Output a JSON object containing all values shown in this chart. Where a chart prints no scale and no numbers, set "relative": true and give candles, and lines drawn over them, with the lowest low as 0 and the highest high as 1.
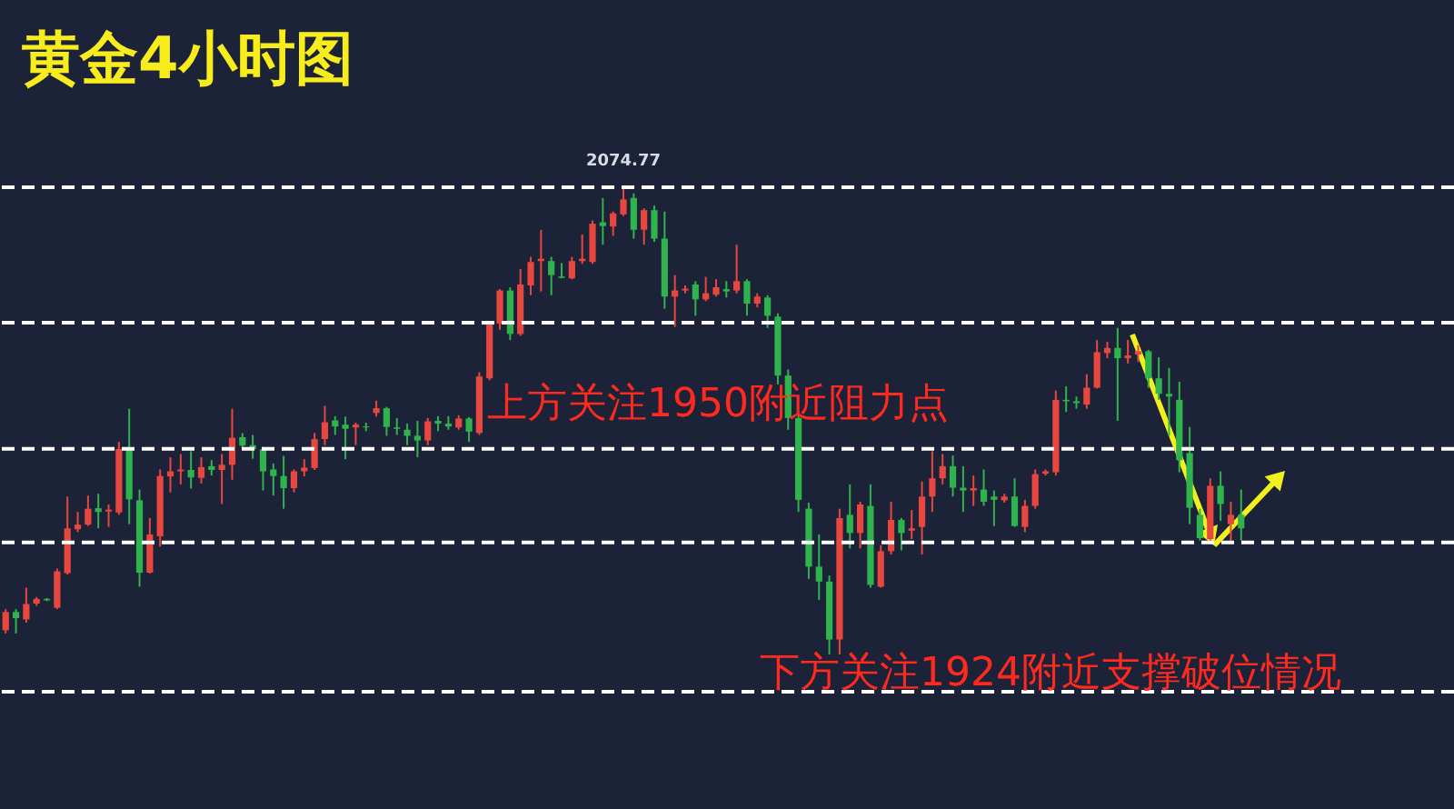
{
  "chart_data": {
    "type": "candlestick",
    "title": "黄金4小时图",
    "relative": true,
    "categories": [
      null,
      null,
      null,
      null,
      null,
      null,
      null,
      null,
      null,
      null,
      null,
      null,
      null,
      null,
      null,
      null,
      null,
      null,
      null,
      null,
      null,
      null,
      null,
      null,
      null,
      null,
      null,
      null,
      null,
      null,
      null,
      null,
      null,
      null,
      null,
      null,
      null,
      null,
      null,
      null,
      null,
      null,
      null,
      null,
      null,
      null,
      null,
      null,
      null,
      null,
      null,
      null,
      null,
      null,
      null,
      null,
      null,
      null,
      null,
      null,
      null,
      null,
      null,
      null,
      null,
      null,
      null,
      null,
      null,
      null,
      null,
      null,
      null,
      null,
      null,
      null,
      null,
      null,
      null,
      null,
      null,
      null,
      null,
      null,
      null,
      null,
      null,
      null,
      null,
      null,
      null,
      null,
      null,
      null,
      null,
      null,
      null,
      null,
      null,
      null,
      null,
      null,
      null,
      null,
      null,
      null,
      null,
      null,
      null,
      null,
      null,
      null,
      null,
      null,
      null,
      null,
      null,
      null,
      null,
      null,
      null
    ],
    "ohlc": [
      [
        0.052,
        0.097,
        0.045,
        0.091
      ],
      [
        0.091,
        0.097,
        0.045,
        0.078
      ],
      [
        0.075,
        0.143,
        0.068,
        0.108
      ],
      [
        0.109,
        0.123,
        0.104,
        0.119
      ],
      [
        0.119,
        0.121,
        0.114,
        0.116
      ],
      [
        0.1,
        0.184,
        0.097,
        0.178
      ],
      [
        0.174,
        0.338,
        0.171,
        0.27
      ],
      [
        0.268,
        0.305,
        0.262,
        0.278
      ],
      [
        0.278,
        0.34,
        0.275,
        0.312
      ],
      [
        0.313,
        0.344,
        0.27,
        0.305
      ],
      [
        0.306,
        0.321,
        0.273,
        0.31
      ],
      [
        0.304,
        0.455,
        0.299,
        0.44
      ],
      [
        0.44,
        0.526,
        0.279,
        0.332
      ],
      [
        0.33,
        0.353,
        0.145,
        0.175
      ],
      [
        0.175,
        0.292,
        0.173,
        0.257
      ],
      [
        0.253,
        0.396,
        0.231,
        0.382
      ],
      [
        0.381,
        0.422,
        0.347,
        0.392
      ],
      [
        0.392,
        0.429,
        0.364,
        0.396
      ],
      [
        0.395,
        0.435,
        0.355,
        0.379
      ],
      [
        0.378,
        0.422,
        0.366,
        0.401
      ],
      [
        0.403,
        0.416,
        0.383,
        0.395
      ],
      [
        0.395,
        0.429,
        0.322,
        0.406
      ],
      [
        0.406,
        0.526,
        0.374,
        0.464
      ],
      [
        0.465,
        0.474,
        0.444,
        0.447
      ],
      [
        0.448,
        0.47,
        0.419,
        0.439
      ],
      [
        0.439,
        0.444,
        0.351,
        0.392
      ],
      [
        0.396,
        0.409,
        0.34,
        0.382
      ],
      [
        0.382,
        0.425,
        0.312,
        0.356
      ],
      [
        0.356,
        0.396,
        0.347,
        0.392
      ],
      [
        0.392,
        0.418,
        0.381,
        0.4
      ],
      [
        0.399,
        0.474,
        0.395,
        0.461
      ],
      [
        0.461,
        0.532,
        0.448,
        0.497
      ],
      [
        0.501,
        0.51,
        0.47,
        0.488
      ],
      [
        0.492,
        0.509,
        0.418,
        0.483
      ],
      [
        0.486,
        0.496,
        0.448,
        0.492
      ],
      [
        0.488,
        0.496,
        0.478,
        0.486
      ],
      [
        0.517,
        0.543,
        0.509,
        0.527
      ],
      [
        0.527,
        0.53,
        0.468,
        0.487
      ],
      [
        0.486,
        0.506,
        0.47,
        0.483
      ],
      [
        0.481,
        0.494,
        0.448,
        0.468
      ],
      [
        0.468,
        0.5,
        0.422,
        0.458
      ],
      [
        0.458,
        0.506,
        0.448,
        0.499
      ],
      [
        0.5,
        0.51,
        0.478,
        0.494
      ],
      [
        0.494,
        0.51,
        0.481,
        0.488
      ],
      [
        0.486,
        0.512,
        0.481,
        0.505
      ],
      [
        0.505,
        0.508,
        0.455,
        0.477
      ],
      [
        0.474,
        0.604,
        0.47,
        0.595
      ],
      [
        0.591,
        0.714,
        0.587,
        0.708
      ],
      [
        0.708,
        0.782,
        0.695,
        0.779
      ],
      [
        0.779,
        0.786,
        0.673,
        0.686
      ],
      [
        0.686,
        0.825,
        0.682,
        0.792
      ],
      [
        0.79,
        0.851,
        0.769,
        0.84
      ],
      [
        0.842,
        0.909,
        0.777,
        0.847
      ],
      [
        0.842,
        0.851,
        0.769,
        0.812
      ],
      [
        0.809,
        0.838,
        0.805,
        0.806
      ],
      [
        0.805,
        0.851,
        0.803,
        0.842
      ],
      [
        0.842,
        0.899,
        0.836,
        0.847
      ],
      [
        0.84,
        0.929,
        0.836,
        0.922
      ],
      [
        0.925,
        0.977,
        0.877,
        0.917
      ],
      [
        0.916,
        0.948,
        0.896,
        0.944
      ],
      [
        0.942,
        1,
        0.938,
        0.974
      ],
      [
        0.977,
        0.987,
        0.89,
        0.909
      ],
      [
        0.909,
        0.955,
        0.877,
        0.951
      ],
      [
        0.951,
        0.961,
        0.883,
        0.89
      ],
      [
        0.89,
        0.948,
        0.74,
        0.766
      ],
      [
        0.766,
        0.812,
        0.701,
        0.779
      ],
      [
        0.779,
        0.79,
        0.773,
        0.783
      ],
      [
        0.792,
        0.799,
        0.725,
        0.76
      ],
      [
        0.76,
        0.808,
        0.756,
        0.773
      ],
      [
        0.77,
        0.803,
        0.766,
        0.786
      ],
      [
        0.782,
        0.799,
        0.764,
        0.777
      ],
      [
        0.779,
        0.877,
        0.773,
        0.799
      ],
      [
        0.799,
        0.803,
        0.725,
        0.751
      ],
      [
        0.751,
        0.773,
        0.743,
        0.766
      ],
      [
        0.764,
        0.769,
        0.699,
        0.725
      ],
      [
        0.723,
        0.73,
        0.578,
        0.597
      ],
      [
        0.597,
        0.61,
        0.481,
        0.506
      ],
      [
        0.506,
        0.513,
        0.305,
        0.331
      ],
      [
        0.312,
        0.325,
        0.162,
        0.188
      ],
      [
        0.188,
        0.257,
        0.117,
        0.156
      ],
      [
        0.156,
        0.169,
        0,
        0.032
      ],
      [
        0.032,
        0.312,
        0,
        0.292
      ],
      [
        0.299,
        0.364,
        0.227,
        0.26
      ],
      [
        0.26,
        0.327,
        0.227,
        0.321
      ],
      [
        0.318,
        0.364,
        0.143,
        0.149
      ],
      [
        0.145,
        0.234,
        0.143,
        0.221
      ],
      [
        0.221,
        0.327,
        0.214,
        0.288
      ],
      [
        0.288,
        0.292,
        0.223,
        0.26
      ],
      [
        0.265,
        0.309,
        0.247,
        0.27
      ],
      [
        0.273,
        0.37,
        0.214,
        0.338
      ],
      [
        0.338,
        0.435,
        0.305,
        0.377
      ],
      [
        0.377,
        0.429,
        0.364,
        0.403
      ],
      [
        0.403,
        0.426,
        0.338,
        0.357
      ],
      [
        0.357,
        0.403,
        0.305,
        0.351
      ],
      [
        0.351,
        0.383,
        0.318,
        0.356
      ],
      [
        0.353,
        0.396,
        0.318,
        0.327
      ],
      [
        0.338,
        0.351,
        0.275,
        0.331
      ],
      [
        0.33,
        0.344,
        0.325,
        0.338
      ],
      [
        0.338,
        0.377,
        0.273,
        0.275
      ],
      [
        0.273,
        0.331,
        0.262,
        0.318
      ],
      [
        0.318,
        0.396,
        0.312,
        0.386
      ],
      [
        0.387,
        0.396,
        0.383,
        0.392
      ],
      [
        0.39,
        0.565,
        0.383,
        0.545
      ],
      [
        0.545,
        0.574,
        0.519,
        0.542
      ],
      [
        0.542,
        0.552,
        0.526,
        0.538
      ],
      [
        0.535,
        0.6,
        0.526,
        0.571
      ],
      [
        0.571,
        0.673,
        0.569,
        0.647
      ],
      [
        0.645,
        0.669,
        0.634,
        0.656
      ],
      [
        0.656,
        0.699,
        0.5,
        0.634
      ],
      [
        0.634,
        0.673,
        0.623,
        0.64
      ],
      [
        0.642,
        0.662,
        0.626,
        0.649
      ],
      [
        0.649,
        0.652,
        0.571,
        0.591
      ],
      [
        0.591,
        0.636,
        0.545,
        0.558
      ],
      [
        0.558,
        0.613,
        0.468,
        0.552
      ],
      [
        0.545,
        0.584,
        0.39,
        0.416
      ],
      [
        0.431,
        0.487,
        0.279,
        0.314
      ],
      [
        0.299,
        0.312,
        0.244,
        0.249
      ],
      [
        0.247,
        0.377,
        0.24,
        0.361
      ],
      [
        0.361,
        0.392,
        0.286,
        0.322
      ],
      [
        0.279,
        0.327,
        0.24,
        0.299
      ],
      [
        0.299,
        0.353,
        0.244,
        0.27
      ]
    ],
    "colors": [
      "#e8473f",
      "#2fb44d",
      "#e8473f",
      "#e8473f",
      "#2fb44d",
      "#e8473f",
      "#e8473f",
      "#e8473f",
      "#e8473f",
      "#2fb44d",
      "#e8473f",
      "#e8473f",
      "#2fb44d",
      "#2fb44d",
      "#e8473f",
      "#e8473f",
      "#e8473f",
      "#e8473f",
      "#2fb44d",
      "#e8473f",
      "#2fb44d",
      "#e8473f",
      "#e8473f",
      "#2fb44d",
      "#2fb44d",
      "#2fb44d",
      "#2fb44d",
      "#2fb44d",
      "#e8473f",
      "#e8473f",
      "#e8473f",
      "#e8473f",
      "#2fb44d",
      "#2fb44d",
      "#e8473f",
      "#2fb44d",
      "#e8473f",
      "#2fb44d",
      "#2fb44d",
      "#2fb44d",
      "#2fb44d",
      "#e8473f",
      "#2fb44d",
      "#2fb44d",
      "#e8473f",
      "#2fb44d",
      "#e8473f",
      "#e8473f",
      "#e8473f",
      "#2fb44d",
      "#e8473f",
      "#e8473f",
      "#e8473f",
      "#2fb44d",
      "#2fb44d",
      "#e8473f",
      "#e8473f",
      "#e8473f",
      "#2fb44d",
      "#e8473f",
      "#e8473f",
      "#2fb44d",
      "#e8473f",
      "#2fb44d",
      "#2fb44d",
      "#e8473f",
      "#e8473f",
      "#2fb44d",
      "#e8473f",
      "#e8473f",
      "#2fb44d",
      "#e8473f",
      "#2fb44d",
      "#e8473f",
      "#2fb44d",
      "#2fb44d",
      "#2fb44d",
      "#2fb44d",
      "#2fb44d",
      "#2fb44d",
      "#2fb44d",
      "#e8473f",
      "#2fb44d",
      "#e8473f",
      "#2fb44d",
      "#e8473f",
      "#e8473f",
      "#2fb44d",
      "#e8473f",
      "#e8473f",
      "#e8473f",
      "#e8473f",
      "#2fb44d",
      "#2fb44d",
      "#e8473f",
      "#2fb44d",
      "#2fb44d",
      "#e8473f",
      "#2fb44d",
      "#e8473f",
      "#e8473f",
      "#e8473f",
      "#e8473f",
      "#2fb44d",
      "#2fb44d",
      "#e8473f",
      "#e8473f",
      "#e8473f",
      "#2fb44d",
      "#e8473f",
      "#e8473f",
      "#2fb44d",
      "#2fb44d",
      "#2fb44d",
      "#2fb44d",
      "#2fb44d",
      "#2fb44d",
      "#e8473f",
      "#2fb44d",
      "#e8473f",
      "#2fb44d"
    ],
    "ref_lines": [
      {
        "axis": "y",
        "value": 1,
        "color": "#ffffff",
        "line_style": "dashed"
      },
      {
        "axis": "y",
        "value": 0.71,
        "color": "#ffffff",
        "line_style": "dashed"
      },
      {
        "axis": "y",
        "value": 0.44,
        "color": "#ffffff",
        "line_style": "dashed"
      },
      {
        "axis": "y",
        "value": 0.24,
        "color": "#ffffff",
        "line_style": "dashed"
      },
      {
        "axis": "y",
        "value": -0.08,
        "color": "#ffffff",
        "line_style": "dashed"
      }
    ],
    "annotations": [
      "上方关注1950附近阻力点",
      "下方关注1924附近支撑破位情况",
      {
        "text": "2074.77",
        "y": 1
      }
    ]
  }
}
